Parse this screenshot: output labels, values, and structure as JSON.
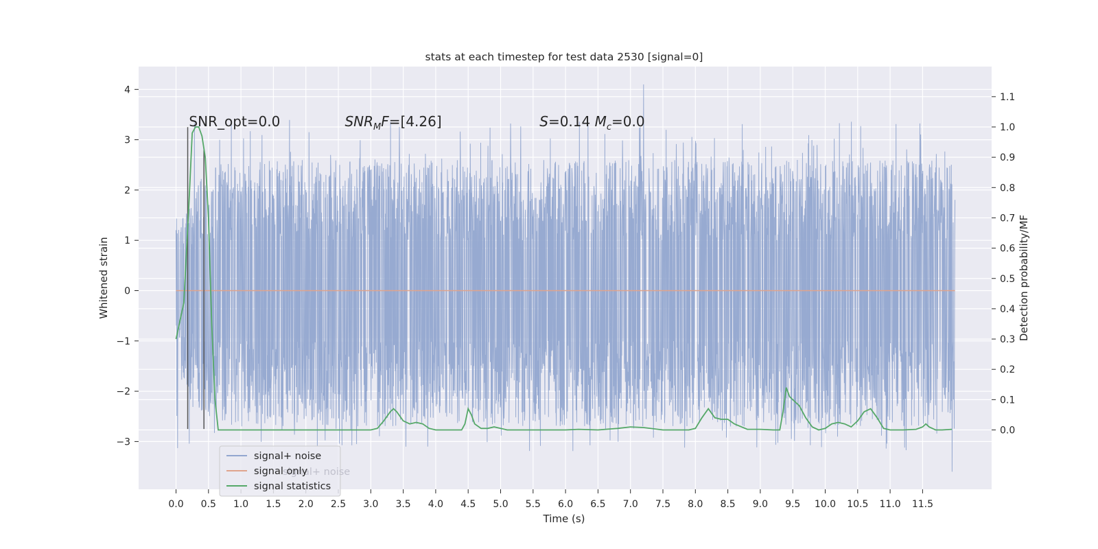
{
  "chart_data": {
    "type": "line",
    "title": "stats at each timestep for test data 2530 [signal=0]",
    "xlabel": "Time (s)",
    "ylabel_left": "Whitened strain",
    "ylabel_right": "Detection probability/MF",
    "xlim": [
      -0.5,
      12.65
    ],
    "ylim_left": [
      -3.95,
      4.45
    ],
    "ylim_right": [
      -0.2,
      1.17
    ],
    "x_ticks": [
      "0.0",
      "0.5",
      "1.0",
      "1.5",
      "2.0",
      "2.5",
      "3.0",
      "3.5",
      "4.0",
      "4.5",
      "5.0",
      "5.5",
      "6.0",
      "6.5",
      "7.0",
      "7.5",
      "8.0",
      "8.5",
      "9.0",
      "9.5",
      "10.0",
      "10.5",
      "11.0",
      "11.5"
    ],
    "y_ticks_left": [
      "−3",
      "−2",
      "−1",
      "0",
      "1",
      "2",
      "3",
      "4"
    ],
    "y_ticks_right": [
      "0.0",
      "0.1",
      "0.2",
      "0.3",
      "0.4",
      "0.5",
      "0.6",
      "0.7",
      "0.8",
      "0.9",
      "1.0",
      "1.1"
    ],
    "grid": true,
    "legend_position": "bottom-left",
    "legend_ghost_text": "signal+ noise",
    "annotations": [
      {
        "text": "SNR_opt=0.0",
        "x": 0.2,
        "y_right": 1.0
      },
      {
        "text": "SNR_MF=[4.26]",
        "parts": [
          {
            "t": "SNR",
            "italic": true
          },
          {
            "t": "M",
            "italic": true,
            "sub": true
          },
          {
            "t": "F",
            "italic": true
          },
          {
            "t": "=[4.26]"
          }
        ],
        "x": 2.6,
        "y_right": 1.0
      },
      {
        "text": "S=0.14 M_c=0.0",
        "parts": [
          {
            "t": "S",
            "italic": true
          },
          {
            "t": "=0.14   "
          },
          {
            "t": "M",
            "italic": true
          },
          {
            "t": "c",
            "italic": true,
            "sub": true
          },
          {
            "t": "=0.0"
          }
        ],
        "x": 5.6,
        "y_right": 1.0
      }
    ],
    "series": [
      {
        "name": "signal+ noise",
        "axis": "left",
        "color": "#92a6cf",
        "x_range": [
          0.0,
          11.999
        ],
        "band_typical": [
          -1.55,
          1.45
        ],
        "spike_max_up": 4.1,
        "spike_max_down": -3.6
      },
      {
        "name": "signal only",
        "axis": "left",
        "color": "#e0a48c",
        "x": [
          0.0,
          12.0
        ],
        "y": [
          0.0,
          0.0
        ]
      },
      {
        "name": "signal statistics",
        "axis": "right",
        "color": "#55a868",
        "x": [
          0.0,
          0.1,
          0.12,
          0.2,
          0.25,
          0.3,
          0.35,
          0.4,
          0.45,
          0.5,
          0.55,
          0.6,
          0.65,
          0.7,
          1.0,
          2.0,
          3.0,
          3.1,
          3.2,
          3.3,
          3.35,
          3.4,
          3.5,
          3.6,
          3.7,
          3.8,
          3.9,
          4.0,
          4.2,
          4.4,
          4.45,
          4.5,
          4.55,
          4.6,
          4.7,
          4.8,
          4.9,
          5.0,
          5.1,
          5.2,
          5.5,
          6.0,
          6.2,
          6.5,
          6.8,
          7.0,
          7.2,
          7.5,
          7.9,
          8.0,
          8.1,
          8.2,
          8.3,
          8.4,
          8.5,
          8.6,
          8.8,
          9.0,
          9.2,
          9.3,
          9.35,
          9.4,
          9.45,
          9.5,
          9.6,
          9.7,
          9.8,
          9.9,
          10.0,
          10.1,
          10.2,
          10.3,
          10.4,
          10.5,
          10.6,
          10.7,
          10.8,
          10.9,
          11.0,
          11.2,
          11.4,
          11.5,
          11.55,
          11.6,
          11.7,
          11.8,
          11.95
        ],
        "y": [
          0.3,
          0.4,
          0.42,
          0.75,
          0.98,
          1.0,
          1.0,
          0.97,
          0.9,
          0.7,
          0.35,
          0.1,
          0.0,
          0.0,
          0.0,
          0.0,
          0.0,
          0.005,
          0.03,
          0.06,
          0.07,
          0.06,
          0.03,
          0.02,
          0.025,
          0.02,
          0.005,
          0.0,
          0.0,
          0.0,
          0.02,
          0.07,
          0.05,
          0.02,
          0.005,
          0.005,
          0.01,
          0.005,
          0.0,
          0.0,
          0.0,
          0.0,
          0.002,
          0.0,
          0.005,
          0.01,
          0.008,
          0.0,
          0.0,
          0.005,
          0.04,
          0.07,
          0.04,
          0.035,
          0.035,
          0.02,
          0.002,
          0.002,
          0.0,
          0.0,
          0.06,
          0.14,
          0.11,
          0.1,
          0.08,
          0.04,
          0.01,
          0.0,
          0.005,
          0.02,
          0.025,
          0.02,
          0.01,
          0.03,
          0.06,
          0.07,
          0.04,
          0.005,
          0.0,
          0.0,
          0.002,
          0.01,
          0.02,
          0.01,
          0.0,
          0.0,
          0.002
        ]
      }
    ],
    "vertical_markers": [
      {
        "x": 0.18,
        "y_left": [
          -2.75,
          3.25
        ],
        "color": "#555555"
      },
      {
        "x": 0.43,
        "y_left": [
          -2.75,
          2.8
        ],
        "color": "#555555"
      }
    ]
  }
}
